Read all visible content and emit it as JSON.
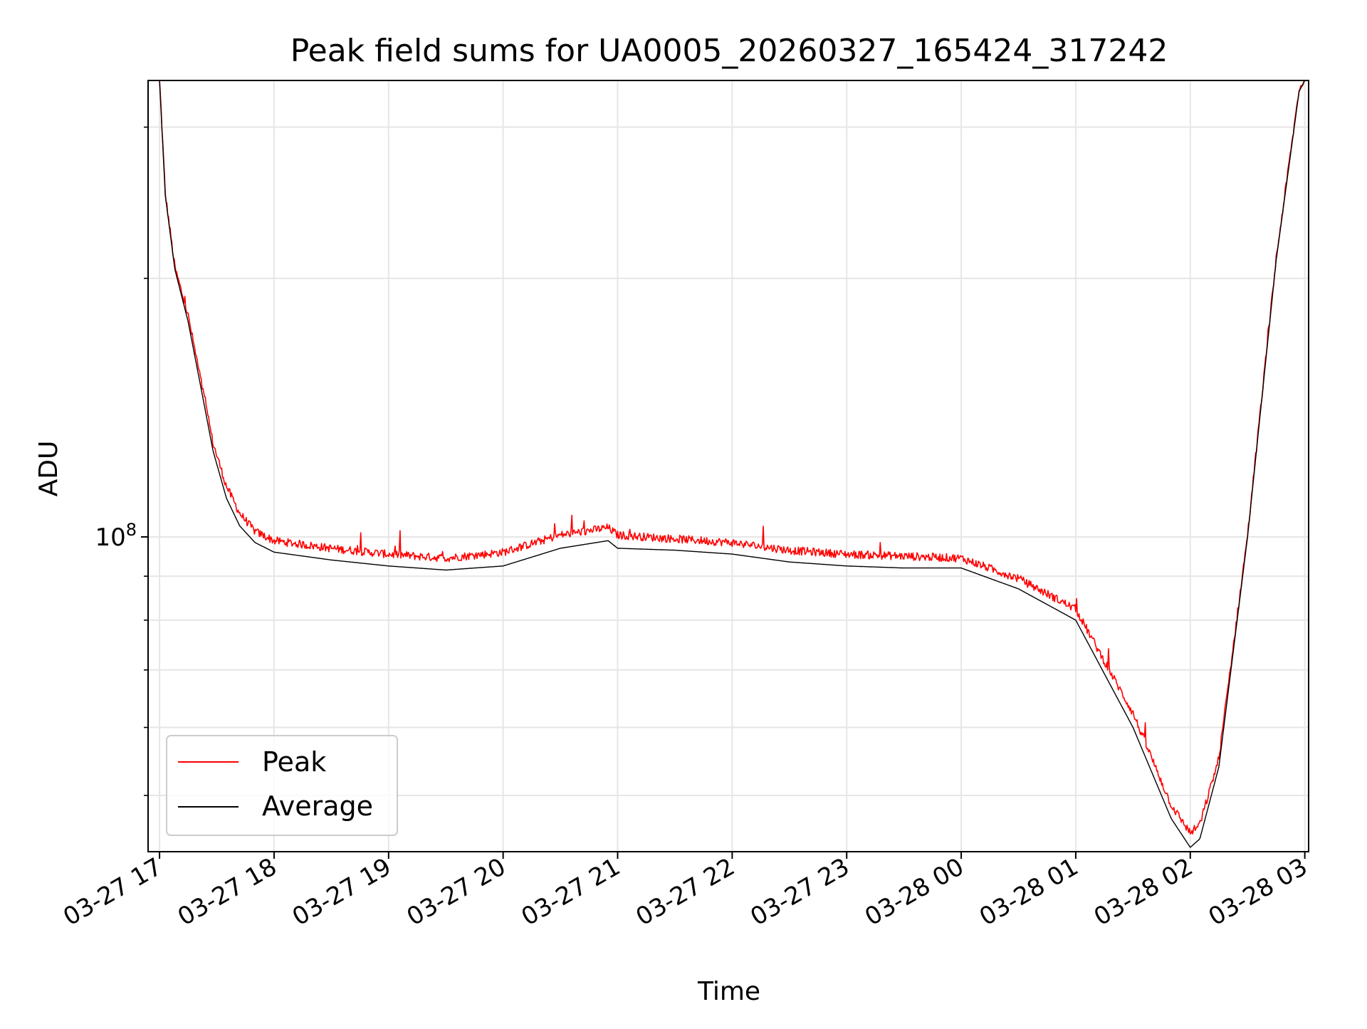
{
  "chart_data": {
    "type": "line",
    "title": "Peak field sums for UA0005_20260327_165424_317242",
    "xlabel": "Time",
    "ylabel": "ADU",
    "yscale": "log",
    "ylim": [
      43000000,
      340000000
    ],
    "xlim": [
      "2026-03-27 16:54",
      "2026-03-28 03:02"
    ],
    "x_ticks": [
      "03-27 17",
      "03-27 18",
      "03-27 19",
      "03-27 20",
      "03-27 21",
      "03-27 22",
      "03-27 23",
      "03-28 00",
      "03-28 01",
      "03-28 02",
      "03-28 03"
    ],
    "y_tick_major": {
      "value": 100000000,
      "base": "10",
      "exponent": "8"
    },
    "y_minor_ticks": [
      50000000,
      60000000,
      70000000,
      80000000,
      90000000,
      200000000,
      300000000
    ],
    "grid": true,
    "legend_position": "lower-left",
    "series": [
      {
        "name": "Peak",
        "color": "#ff0000",
        "noise": true,
        "points": [
          [
            "2026-03-27 17:00",
            340000000
          ],
          [
            "2026-03-27 17:03",
            250000000
          ],
          [
            "2026-03-27 17:08",
            205000000
          ],
          [
            "2026-03-27 17:15",
            180000000
          ],
          [
            "2026-03-27 17:22",
            150000000
          ],
          [
            "2026-03-27 17:28",
            128000000
          ],
          [
            "2026-03-27 17:35",
            114000000
          ],
          [
            "2026-03-27 17:42",
            106000000
          ],
          [
            "2026-03-27 17:50",
            101000000
          ],
          [
            "2026-03-27 18:00",
            98500000
          ],
          [
            "2026-03-27 18:30",
            96500000
          ],
          [
            "2026-03-27 19:00",
            95000000
          ],
          [
            "2026-03-27 19:30",
            94000000
          ],
          [
            "2026-03-27 20:00",
            95500000
          ],
          [
            "2026-03-27 20:30",
            100000000
          ],
          [
            "2026-03-27 20:55",
            102000000
          ],
          [
            "2026-03-27 21:00",
            100000000
          ],
          [
            "2026-03-27 21:30",
            99000000
          ],
          [
            "2026-03-27 22:00",
            98000000
          ],
          [
            "2026-03-27 22:30",
            96000000
          ],
          [
            "2026-03-27 23:00",
            95000000
          ],
          [
            "2026-03-27 23:30",
            94500000
          ],
          [
            "2026-03-28 00:00",
            94000000
          ],
          [
            "2026-03-28 00:30",
            89000000
          ],
          [
            "2026-03-28 01:00",
            82000000
          ],
          [
            "2026-03-28 01:30",
            62000000
          ],
          [
            "2026-03-28 01:50",
            48500000
          ],
          [
            "2026-03-28 02:00",
            45000000
          ],
          [
            "2026-03-28 02:05",
            46000000
          ],
          [
            "2026-03-28 02:15",
            55000000
          ],
          [
            "2026-03-28 02:30",
            100000000
          ],
          [
            "2026-03-28 02:45",
            210000000
          ],
          [
            "2026-03-28 02:57",
            330000000
          ],
          [
            "2026-03-28 03:00",
            340000000
          ]
        ]
      },
      {
        "name": "Average",
        "color": "#000000",
        "noise": false,
        "points": [
          [
            "2026-03-27 17:00",
            340000000
          ],
          [
            "2026-03-27 17:03",
            250000000
          ],
          [
            "2026-03-27 17:08",
            205000000
          ],
          [
            "2026-03-27 17:15",
            178000000
          ],
          [
            "2026-03-27 17:22",
            148000000
          ],
          [
            "2026-03-27 17:28",
            126000000
          ],
          [
            "2026-03-27 17:35",
            111000000
          ],
          [
            "2026-03-27 17:42",
            103000000
          ],
          [
            "2026-03-27 17:50",
            98500000
          ],
          [
            "2026-03-27 18:00",
            96000000
          ],
          [
            "2026-03-27 18:30",
            94000000
          ],
          [
            "2026-03-27 19:00",
            92500000
          ],
          [
            "2026-03-27 19:30",
            91500000
          ],
          [
            "2026-03-27 20:00",
            92500000
          ],
          [
            "2026-03-27 20:30",
            97000000
          ],
          [
            "2026-03-27 20:55",
            99000000
          ],
          [
            "2026-03-27 21:00",
            97000000
          ],
          [
            "2026-03-27 21:30",
            96500000
          ],
          [
            "2026-03-27 22:00",
            95500000
          ],
          [
            "2026-03-27 22:30",
            93500000
          ],
          [
            "2026-03-27 23:00",
            92500000
          ],
          [
            "2026-03-27 23:30",
            92000000
          ],
          [
            "2026-03-28 00:00",
            92000000
          ],
          [
            "2026-03-28 00:30",
            87000000
          ],
          [
            "2026-03-28 01:00",
            80000000
          ],
          [
            "2026-03-28 01:30",
            60000000
          ],
          [
            "2026-03-28 01:50",
            47000000
          ],
          [
            "2026-03-28 02:00",
            43500000
          ],
          [
            "2026-03-28 02:05",
            44500000
          ],
          [
            "2026-03-28 02:15",
            54000000
          ],
          [
            "2026-03-28 02:30",
            100000000
          ],
          [
            "2026-03-28 02:45",
            210000000
          ],
          [
            "2026-03-28 02:57",
            330000000
          ],
          [
            "2026-03-28 03:00",
            340000000
          ]
        ]
      }
    ]
  }
}
